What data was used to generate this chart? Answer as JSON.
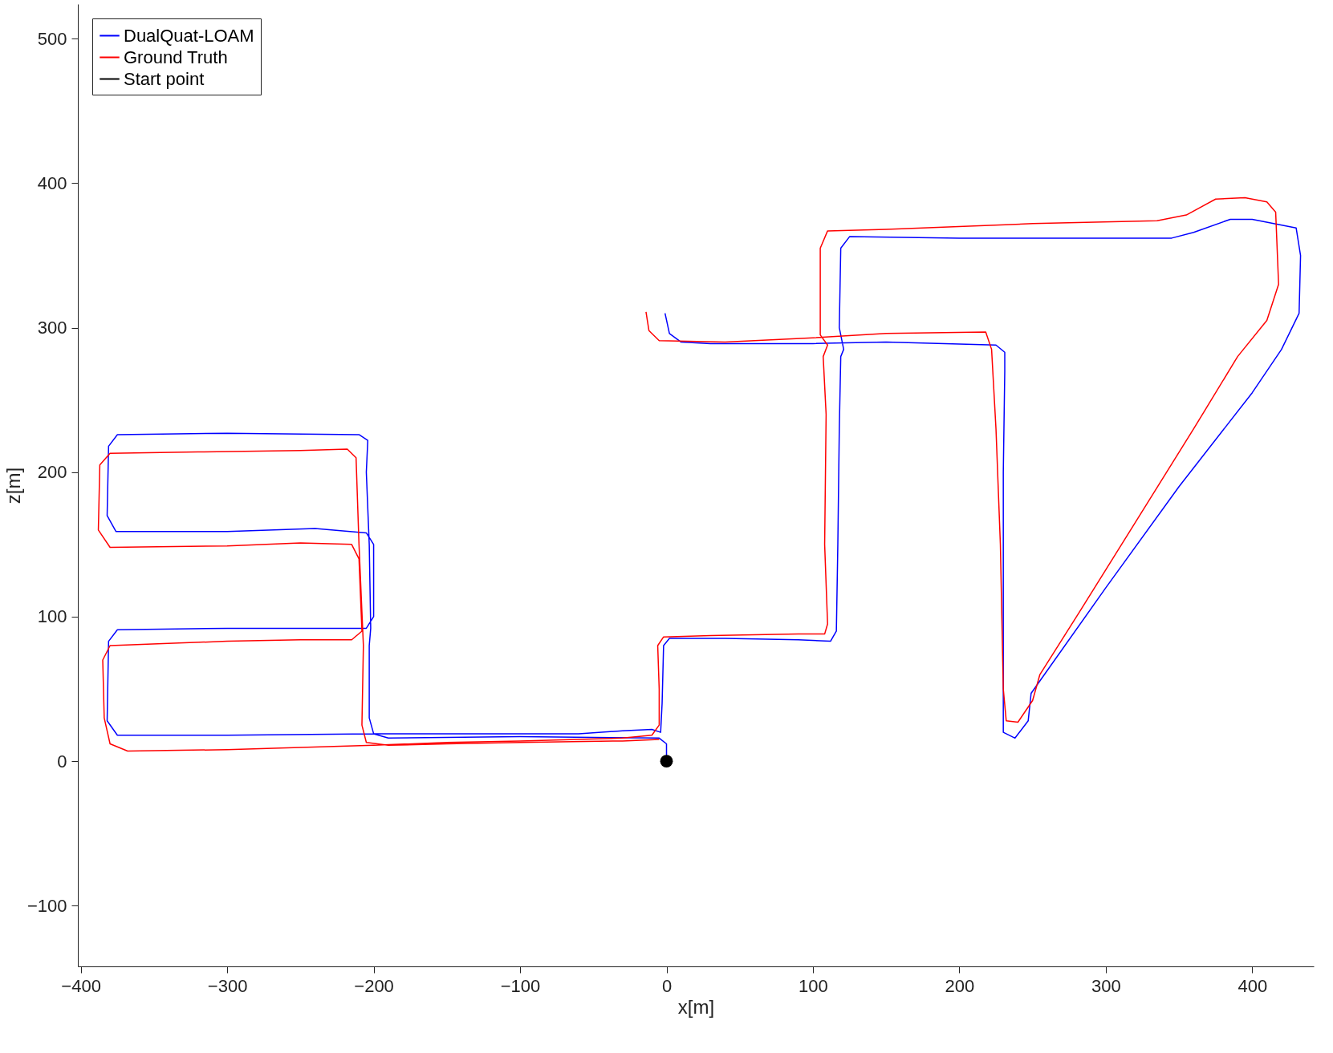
{
  "chart_data": {
    "type": "line",
    "xlabel": "x[m]",
    "ylabel": "z[m]",
    "xlim": [
      -402,
      442
    ],
    "xticks": [
      -400,
      -300,
      -200,
      -100,
      0,
      100,
      200,
      300,
      400
    ],
    "ylim": [
      -142,
      524
    ],
    "yticks": [
      -100,
      0,
      100,
      200,
      300,
      400,
      500
    ],
    "grid": false,
    "legend": "top left",
    "line_style": "solid",
    "series": [
      {
        "name": "DualQuat-LOAM",
        "color": "#0000ff",
        "x": [
          0,
          0,
          -5,
          -100,
          -190,
          -200,
          -203,
          -203,
          -202,
          -203,
          -205,
          -204,
          -210,
          -300,
          -375,
          -381,
          -382,
          -376,
          -300,
          -240,
          -205,
          -200,
          -200,
          -205,
          -240,
          -300,
          -375,
          -381,
          -382,
          -375,
          -300,
          -200,
          -100,
          -60,
          -30,
          -10,
          -4,
          -3,
          -2,
          2,
          40,
          90,
          112,
          116,
          117,
          118,
          119,
          121,
          118,
          119,
          125,
          200,
          300,
          345,
          360,
          385,
          400,
          430,
          433,
          432,
          420,
          400,
          350,
          300,
          249,
          247,
          238,
          230,
          230,
          230,
          231,
          231,
          225,
          150,
          100,
          30,
          10,
          2,
          -1
        ],
        "values": [
          0,
          12,
          16,
          17,
          16,
          19,
          30,
          80,
          92,
          150,
          200,
          222,
          226,
          227,
          226,
          218,
          170,
          159,
          159,
          161,
          158,
          150,
          100,
          92,
          92,
          92,
          91,
          83,
          28,
          18,
          18,
          19,
          19,
          19,
          21,
          22,
          20,
          40,
          80,
          85,
          85,
          84,
          83,
          90,
          150,
          230,
          280,
          285,
          300,
          355,
          363,
          362,
          362,
          362,
          366,
          375,
          375,
          369,
          350,
          310,
          285,
          255,
          190,
          120,
          47,
          28,
          16,
          20,
          100,
          200,
          270,
          283,
          288,
          290,
          289,
          289,
          290,
          296,
          310
        ]
      },
      {
        "name": "Ground Truth",
        "color": "#ff0000",
        "x": [
          -5,
          -30,
          -100,
          -150,
          -190,
          -205,
          -208,
          -207,
          -210,
          -212,
          -218,
          -250,
          -320,
          -380,
          -387,
          -388,
          -380,
          -300,
          -250,
          -215,
          -210,
          -208,
          -215,
          -250,
          -300,
          -380,
          -385,
          -384,
          -380,
          -368,
          -300,
          -200,
          -150,
          -100,
          -30,
          -10,
          -5,
          -5,
          -6,
          -2,
          30,
          90,
          108,
          110,
          108,
          109,
          107,
          110,
          105,
          105,
          110,
          150,
          250,
          335,
          355,
          375,
          395,
          410,
          416,
          418,
          410,
          390,
          360,
          320,
          280,
          255,
          250,
          240,
          232,
          230,
          228,
          225,
          222,
          218,
          150,
          100,
          40,
          -5,
          -12,
          -14
        ],
        "values": [
          15,
          14,
          13,
          12,
          11,
          13,
          25,
          80,
          150,
          210,
          216,
          215,
          214,
          213,
          205,
          160,
          148,
          149,
          151,
          150,
          140,
          90,
          84,
          84,
          83,
          80,
          70,
          30,
          12,
          7,
          8,
          11,
          13,
          14,
          16,
          18,
          25,
          50,
          80,
          86,
          87,
          88,
          88,
          95,
          150,
          240,
          280,
          288,
          295,
          355,
          367,
          368,
          372,
          374,
          378,
          389,
          390,
          387,
          380,
          330,
          305,
          280,
          230,
          165,
          100,
          60,
          42,
          27,
          28,
          50,
          150,
          230,
          285,
          297,
          296,
          293,
          290,
          291,
          298,
          311
        ]
      },
      {
        "name": "Start point",
        "color": "#000000",
        "type": "scatter",
        "marker": "circle",
        "x": [
          0
        ],
        "values": [
          0
        ]
      }
    ]
  }
}
